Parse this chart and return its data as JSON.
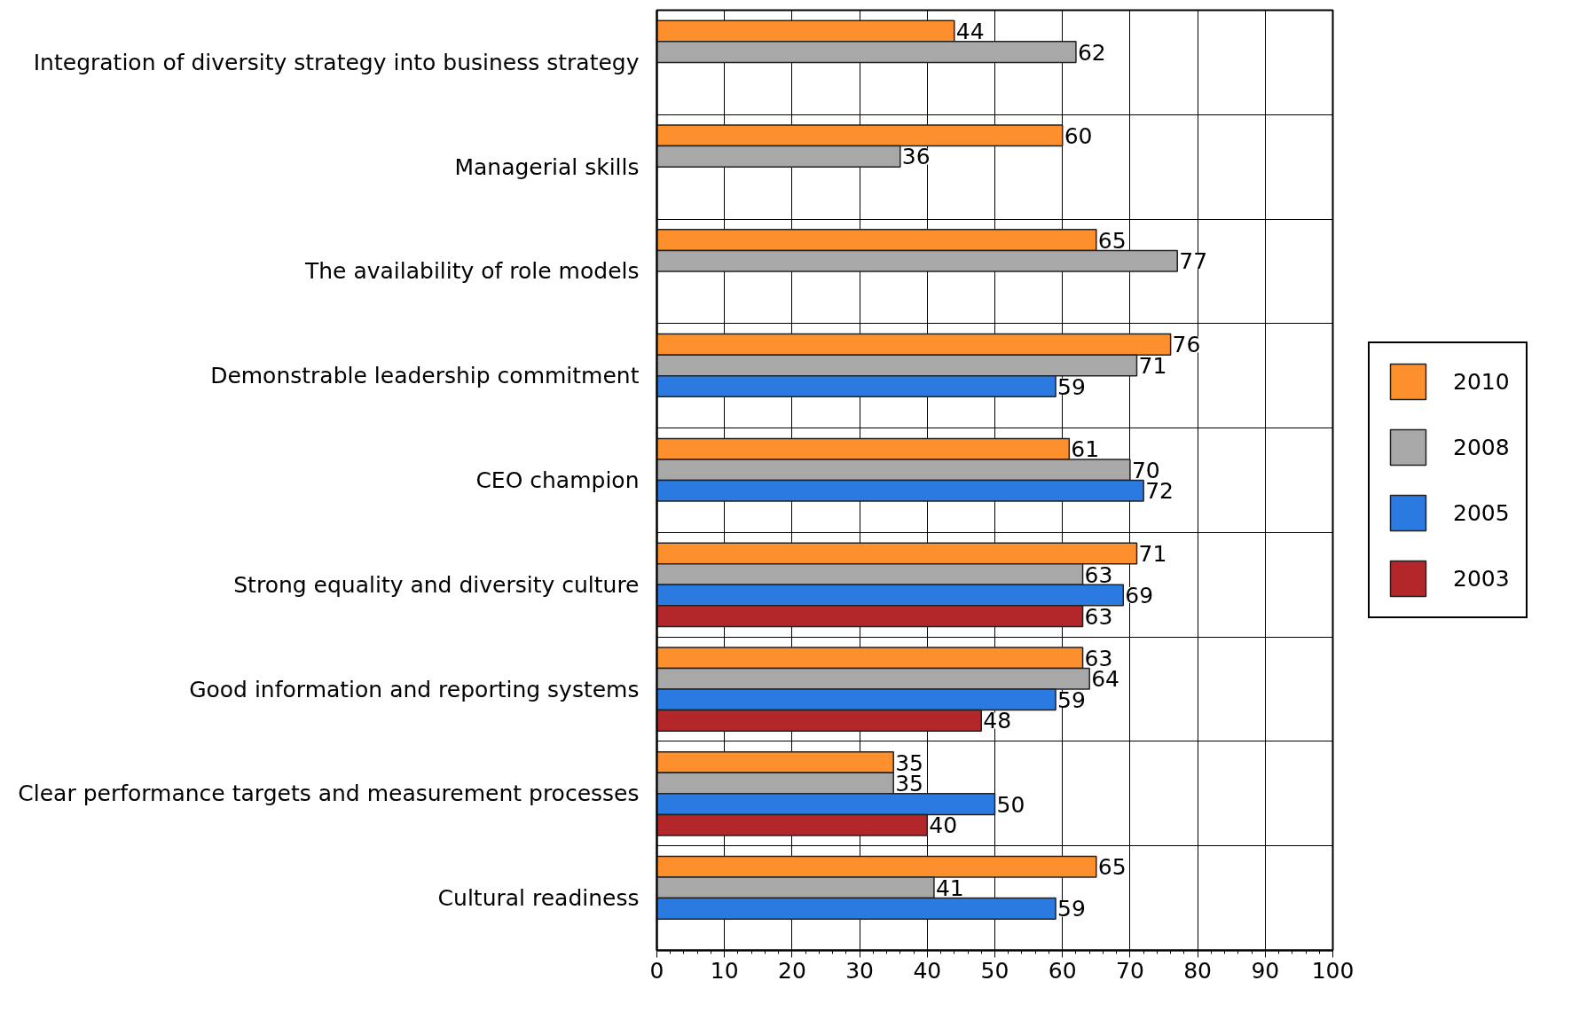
{
  "chart_data": {
    "type": "bar",
    "orientation": "horizontal",
    "categories": [
      "Integration of diversity strategy into business strategy",
      "Managerial skills",
      "The availability of role models",
      "Demonstrable leadership commitment",
      "CEO champion",
      "Strong equality and diversity culture",
      "Good information and reporting systems",
      "Clear performance targets and measurement processes",
      "Cultural readiness"
    ],
    "series": [
      {
        "name": "2010",
        "color": "#fd8f2c",
        "values": [
          44,
          60,
          65,
          76,
          61,
          71,
          63,
          35,
          65
        ]
      },
      {
        "name": "2008",
        "color": "#a8a8a8",
        "values": [
          62,
          36,
          77,
          71,
          70,
          63,
          64,
          35,
          41
        ]
      },
      {
        "name": "2005",
        "color": "#2a7ae2",
        "values": [
          null,
          null,
          null,
          59,
          72,
          69,
          59,
          50,
          59
        ]
      },
      {
        "name": "2003",
        "color": "#b3262a",
        "values": [
          null,
          null,
          null,
          null,
          null,
          63,
          48,
          40,
          null
        ]
      }
    ],
    "xlim": [
      0,
      100
    ],
    "xticks": [
      0,
      10,
      20,
      30,
      40,
      50,
      60,
      70,
      80,
      90,
      100
    ],
    "data_labels": true,
    "grid": true,
    "legend": "right"
  }
}
